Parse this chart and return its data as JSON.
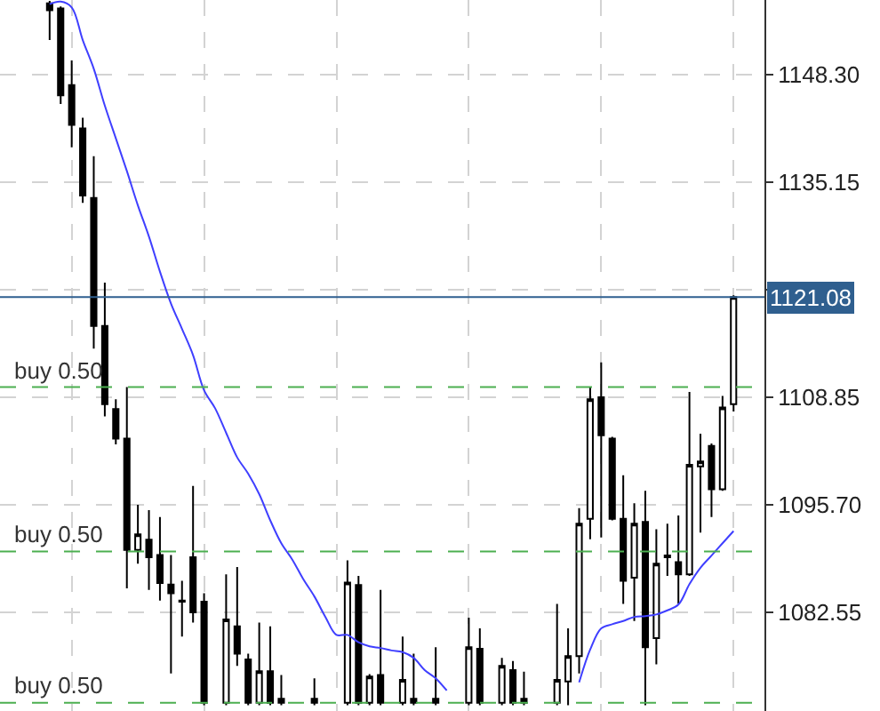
{
  "chart_data": {
    "type": "candlestick",
    "categories": [
      null,
      null,
      null,
      null,
      null,
      null,
      null,
      null,
      null,
      null,
      null,
      null,
      null,
      null,
      null,
      null,
      null,
      null,
      null,
      null,
      null,
      null,
      null,
      null,
      null,
      null,
      null,
      null,
      null,
      null,
      null,
      null,
      null,
      null,
      null,
      null,
      null,
      null,
      null,
      null,
      null,
      null,
      null,
      null,
      null,
      null,
      null,
      null,
      null,
      null,
      null,
      null,
      null,
      null,
      null,
      null,
      null,
      null,
      null,
      null,
      null,
      null,
      null
    ],
    "ohlc": [
      [
        1157.0,
        1157.3,
        1152.5,
        1156.15
      ],
      [
        1156.36,
        1156.6,
        1144.7,
        1145.75
      ],
      [
        1147.0,
        1150.0,
        1139.4,
        1142.15
      ],
      [
        1141.7,
        1143.0,
        1132.6,
        1133.5
      ],
      [
        1133.2,
        1138.3,
        1114.8,
        1117.55
      ],
      [
        1117.55,
        1122.85,
        1106.5,
        1108.0
      ],
      [
        1107.4,
        1108.6,
        1103.1,
        1103.8
      ],
      [
        1103.8,
        1110.1,
        1085.5,
        1090.2
      ],
      [
        1090.2,
        1095.7,
        1088.5,
        1092.1
      ],
      [
        1091.45,
        1095.05,
        1085.3,
        1089.3
      ],
      [
        1089.55,
        1094.2,
        1084.0,
        1086.15
      ],
      [
        1085.95,
        1089.55,
        1075.1,
        1084.9
      ],
      [
        1084.0,
        1086.4,
        1079.6,
        1083.85
      ],
      [
        1089.3,
        1098.0,
        1081.3,
        1082.55
      ],
      [
        1083.85,
        1084.9,
        1071.2,
        1071.5
      ],
      null,
      [
        1071.5,
        1087.2,
        1071.2,
        1081.7
      ],
      [
        1080.85,
        1088.1,
        1076.0,
        1077.5
      ],
      [
        1076.8,
        1077.5,
        1071.2,
        1071.5
      ],
      [
        1071.5,
        1081.3,
        1071.2,
        1075.35
      ],
      [
        1075.35,
        1080.85,
        1071.2,
        1071.5
      ],
      [
        1072.0,
        1074.9,
        1071.2,
        1071.5
      ],
      null,
      null,
      [
        1072.0,
        1074.5,
        1071.2,
        1071.5
      ],
      null,
      null,
      [
        1071.5,
        1088.9,
        1071.2,
        1086.2
      ],
      [
        1085.9,
        1087.0,
        1071.2,
        1071.5
      ],
      [
        1071.5,
        1075.0,
        1071.2,
        1074.7
      ],
      [
        1074.9,
        1085.3,
        1071.2,
        1071.5
      ],
      null,
      [
        1071.5,
        1079.6,
        1071.2,
        1074.3
      ],
      [
        1072.0,
        1077.5,
        1071.2,
        1071.5
      ],
      null,
      [
        1072.0,
        1078.3,
        1071.2,
        1071.5
      ],
      null,
      null,
      [
        1071.5,
        1081.9,
        1071.2,
        1078.3
      ],
      [
        1078.1,
        1080.6,
        1071.2,
        1071.5
      ],
      null,
      [
        1071.5,
        1077.0,
        1071.2,
        1076.0
      ],
      [
        1075.5,
        1076.6,
        1071.2,
        1071.5
      ],
      [
        1072.0,
        1075.3,
        1071.2,
        1071.5
      ],
      null,
      null,
      [
        1071.5,
        1083.6,
        1071.2,
        1074.3
      ],
      [
        1074.1,
        1080.6,
        1071.2,
        1077.2
      ],
      [
        1077.2,
        1095.3,
        1075.1,
        1093.4
      ],
      [
        1094.0,
        1110.1,
        1091.5,
        1108.6
      ],
      [
        1108.85,
        1113.1,
        1091.7,
        1104.2
      ],
      [
        1103.8,
        1104.0,
        1093.8,
        1094.0
      ],
      [
        1094.0,
        1099.3,
        1083.6,
        1086.4
      ],
      [
        1086.8,
        1095.9,
        1081.5,
        1093.4
      ],
      [
        1093.6,
        1097.4,
        1071.2,
        1078.3
      ],
      [
        1079.4,
        1092.7,
        1076.2,
        1088.5
      ],
      [
        1089.3,
        1093.4,
        1087.0,
        1089.5
      ],
      [
        1088.7,
        1094.4,
        1083.6,
        1087.2
      ],
      [
        1087.2,
        1109.5,
        1087.0,
        1100.6
      ],
      [
        1100.4,
        1104.4,
        1092.3,
        1101.0
      ],
      [
        1102.9,
        1103.2,
        1094.2,
        1097.6
      ],
      [
        1097.6,
        1109.0,
        1097.4,
        1107.6
      ],
      [
        1108.0,
        1121.3,
        1107.1,
        1121.08
      ]
    ],
    "series": [
      {
        "type": "line",
        "color": "#3f3fff",
        "values": [
          1156.9,
          1157.2,
          1156.5,
          1152.5,
          1149.0,
          1144.5,
          1140.5,
          1136.5,
          1132.3,
          1128.5,
          1124.2,
          1120.3,
          1117.2,
          1114.0,
          1109.7,
          1107.5,
          1104.5,
          1101.5,
          1099.5,
          1097.0,
          1093.8,
          1091.0,
          1089.0,
          1086.6,
          1084.5,
          1082.0,
          1079.8,
          1079.8,
          1078.9,
          1078.4,
          1078.2,
          1077.9,
          1077.7,
          1077.0,
          1075.5,
          1074.5,
          1073.0,
          null,
          null,
          null,
          null,
          null,
          null,
          null,
          null,
          null,
          null,
          null,
          1074.0,
          1078.0,
          1080.6,
          1081.1,
          1081.5,
          1082.0,
          1082.1,
          1082.3,
          1082.8,
          1083.5,
          1086.0,
          1088.0,
          1089.5,
          1091.0,
          1092.5
        ]
      }
    ],
    "ylim": [
      1070.5,
      1157.4
    ],
    "yticks": [
      {
        "value": 1148.3,
        "label": "1148.30"
      },
      {
        "value": 1135.15,
        "label": "1135.15"
      },
      {
        "value": 1122.0,
        "label": null
      },
      {
        "value": 1108.85,
        "label": "1108.85"
      },
      {
        "value": 1095.7,
        "label": "1095.70"
      },
      {
        "value": 1082.55,
        "label": "1082.55"
      }
    ],
    "grid": true,
    "tick_labels": "y",
    "ref_lines": [
      {
        "axis": "y",
        "value": 1121.08,
        "label": "1121.08",
        "color": "#2f5f8f",
        "line_style": "solid"
      },
      {
        "axis": "y",
        "value": 1110.1,
        "label": "buy 0.50",
        "color": "#4caf50",
        "line_style": "dashed"
      },
      {
        "axis": "y",
        "value": 1090.0,
        "label": "buy 0.50",
        "color": "#4caf50",
        "line_style": "dashed"
      },
      {
        "axis": "y",
        "value": 1071.5,
        "label": "buy 0.50",
        "color": "#4caf50",
        "line_style": "dashed"
      }
    ]
  }
}
